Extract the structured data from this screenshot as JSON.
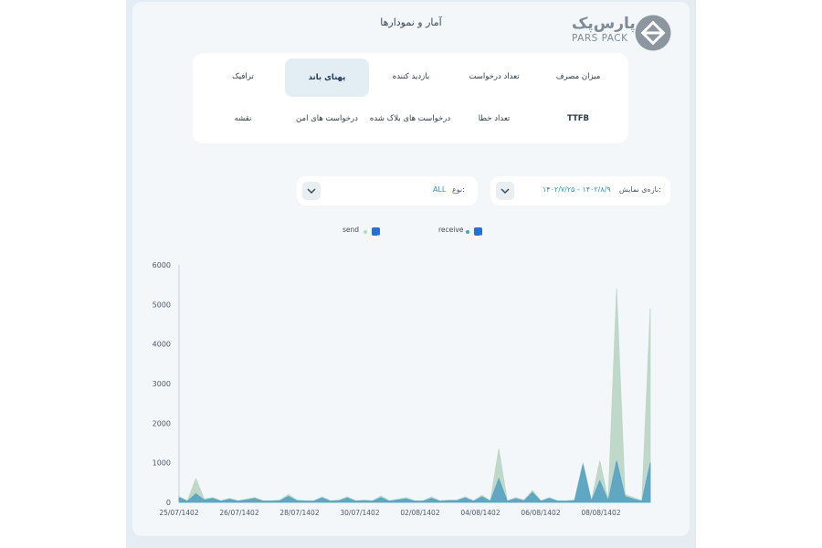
{
  "header": {
    "title": "آمار و نمودارها",
    "logo_fa": "پارس‌پک",
    "logo_en": "PARS PACK"
  },
  "tabs": [
    {
      "label": "میزان مصرف",
      "active": false
    },
    {
      "label": "تعداد درخواست",
      "active": false
    },
    {
      "label": "بازدید کننده",
      "active": false
    },
    {
      "label": "پهنای باند",
      "active": true
    },
    {
      "label": "ترافیک",
      "active": false
    },
    {
      "label": "TTFB",
      "active": false
    },
    {
      "label": "تعداد خطا",
      "active": false
    },
    {
      "label": "درخواست های بلاک شده",
      "active": false
    },
    {
      "label": "درخواست های امن",
      "active": false
    },
    {
      "label": "نقشه",
      "active": false
    }
  ],
  "filters": {
    "range_label": "بازه‌ی نمایش:",
    "range_value": "۱۴۰۲/۷/۲۵ - ۱۴۰۲/۸/۹",
    "type_label": "نوع:",
    "type_value": "ALL"
  },
  "legend": {
    "receive": {
      "label": "receive",
      "checked": true,
      "color": "#4f9fc0"
    },
    "send": {
      "label": "send",
      "checked": true,
      "color": "#b9d4c4"
    }
  },
  "chart_data": {
    "type": "area",
    "ylim": [
      0,
      6000
    ],
    "yticks": [
      0,
      1000,
      2000,
      3000,
      4000,
      5000,
      6000
    ],
    "xlabels": [
      "25/07/1402",
      "26/07/1402",
      "28/07/1402",
      "30/07/1402",
      "02/08/1402",
      "04/08/1402",
      "06/08/1402",
      "08/08/1402"
    ],
    "grid": false,
    "series": [
      {
        "name": "send",
        "color": "#bcd6c6",
        "values": [
          150,
          40,
          600,
          80,
          120,
          40,
          100,
          40,
          80,
          120,
          40,
          40,
          60,
          200,
          60,
          40,
          40,
          140,
          40,
          60,
          140,
          40,
          60,
          40,
          160,
          40,
          80,
          120,
          40,
          40,
          140,
          40,
          60,
          60,
          140,
          40,
          180,
          40,
          1350,
          40,
          120,
          60,
          300,
          40,
          120,
          40,
          40,
          60,
          1000,
          40,
          1050,
          60,
          5400,
          200,
          120,
          40,
          4900
        ]
      },
      {
        "name": "receive",
        "color": "#5aa4c2",
        "values": [
          120,
          30,
          220,
          60,
          100,
          30,
          80,
          30,
          60,
          100,
          30,
          30,
          40,
          150,
          40,
          30,
          30,
          110,
          30,
          40,
          110,
          30,
          40,
          30,
          120,
          30,
          60,
          90,
          30,
          30,
          100,
          30,
          40,
          40,
          110,
          30,
          140,
          30,
          600,
          30,
          90,
          40,
          250,
          30,
          100,
          30,
          30,
          40,
          950,
          30,
          550,
          40,
          1050,
          150,
          80,
          30,
          1000
        ]
      }
    ]
  }
}
